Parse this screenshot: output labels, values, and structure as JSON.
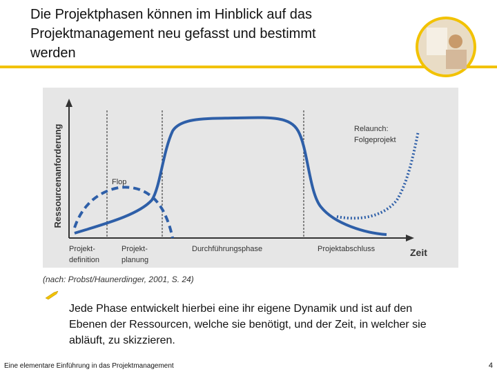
{
  "header": {
    "title_lines": [
      "Die Projektphasen können im Hinblick auf das",
      "Projektmanagement neu gefasst und bestimmt",
      "werden"
    ]
  },
  "diagram": {
    "y_axis_label": "Ressourcenanforderung",
    "x_axis_label": "Zeit",
    "flop_label": "Flop",
    "relaunch_label": [
      "Relaunch:",
      "Folgeprojekt"
    ],
    "phases": [
      [
        "Projekt-",
        "definition"
      ],
      [
        "Projekt-",
        "planung"
      ],
      [
        "Durchführungsphase"
      ],
      [
        "Projektabschluss"
      ]
    ],
    "source": "(nach: Probst/Haunerdinger, 2001, S. 24)"
  },
  "bullet": {
    "lines": [
      "Jede Phase entwickelt hierbei eine ihr eigene Dynamik und ist auf den",
      "Ebenen der Ressourcen, welche sie benötigt, und der Zeit, in welcher sie",
      "abläuft, zu skizzieren."
    ]
  },
  "footer": {
    "text": "Eine elementare Einführung in das Projektmanagement",
    "page": "4"
  }
}
